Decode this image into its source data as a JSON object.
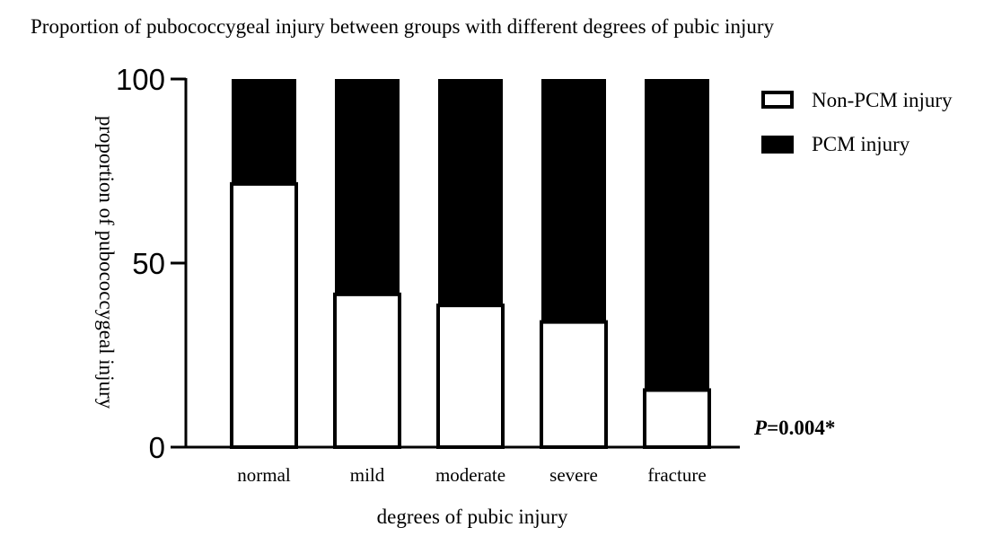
{
  "chart_data": {
    "type": "bar",
    "stacked": true,
    "title": "Proportion of pubococcygeal injury between groups with different degrees of pubic injury",
    "xlabel": "degrees of pubic injury",
    "ylabel": "proportion of pubococcygeal injury",
    "categories": [
      "normal",
      "mild",
      "moderate",
      "severe",
      "fracture"
    ],
    "ylim": [
      0,
      100
    ],
    "yticks": [
      0,
      50,
      100
    ],
    "series": [
      {
        "name": "Non-PCM injury",
        "values": [
          71.5,
          41.5,
          38.5,
          34,
          15.5
        ],
        "color": "#ffffff"
      },
      {
        "name": "PCM injury",
        "values": [
          28.5,
          58.5,
          61.5,
          66,
          84.5
        ],
        "color": "#000000"
      }
    ],
    "legend_position": "top-right",
    "grid": false,
    "annotation": {
      "italic": "P",
      "rest": "=0.004*"
    }
  }
}
